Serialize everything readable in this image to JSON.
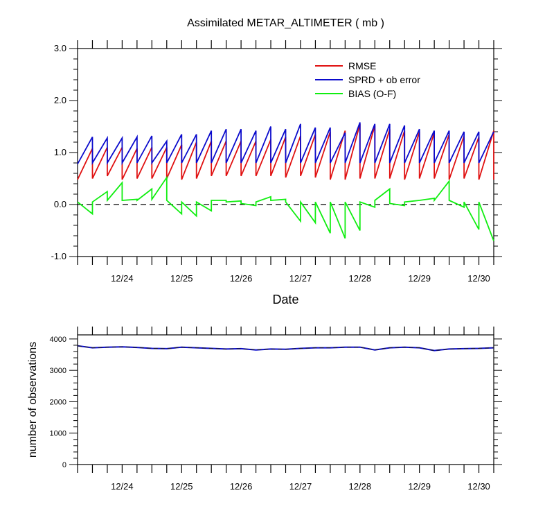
{
  "chart_data": [
    {
      "type": "line",
      "title": "Assimilated METAR_ALTIMETER ( mb )",
      "xlabel": "Date",
      "ylabel": "",
      "xlim": [
        0,
        7.0
      ],
      "ylim": [
        -1.0,
        3.0
      ],
      "yticks": [
        -1.0,
        0.0,
        1.0,
        2.0,
        3.0
      ],
      "ytick_labels": [
        "-1.0",
        "0.0",
        "1.0",
        "2.0",
        "3.0"
      ],
      "xticks": [
        0.75,
        1.75,
        2.75,
        3.75,
        4.75,
        5.75,
        6.75
      ],
      "xtick_labels": [
        "12/24",
        "12/25",
        "12/26",
        "12/27",
        "12/28",
        "12/29",
        "12/30"
      ],
      "legend_position": "top-right",
      "reference_line": {
        "y": 0.0,
        "style": "dashed",
        "color": "#000000"
      },
      "series": [
        {
          "name": "RMSE",
          "color": "#e01010",
          "x": [
            0,
            0.25,
            0.25,
            0.5,
            0.5,
            0.75,
            0.75,
            1.0,
            1.0,
            1.25,
            1.25,
            1.5,
            1.5,
            1.75,
            1.75,
            2.0,
            2.0,
            2.25,
            2.25,
            2.5,
            2.5,
            2.75,
            2.75,
            3.0,
            3.0,
            3.25,
            3.25,
            3.5,
            3.5,
            3.75,
            3.75,
            4.0,
            4.0,
            4.25,
            4.25,
            4.5,
            4.5,
            4.75,
            4.75,
            5.0,
            5.0,
            5.25,
            5.25,
            5.5,
            5.5,
            5.75,
            5.75,
            6.0,
            6.0,
            6.25,
            6.25,
            6.5,
            6.5,
            6.75,
            6.75,
            7.0,
            7.0
          ],
          "values": [
            0.48,
            1.08,
            0.5,
            1.1,
            0.55,
            1.1,
            0.48,
            1.08,
            0.5,
            1.1,
            0.5,
            1.1,
            0.5,
            1.15,
            0.48,
            1.2,
            0.5,
            1.22,
            0.55,
            1.22,
            0.55,
            1.22,
            0.55,
            1.22,
            0.55,
            1.25,
            0.55,
            1.3,
            0.52,
            1.32,
            0.55,
            1.35,
            0.52,
            1.4,
            0.48,
            1.42,
            0.48,
            1.55,
            0.5,
            1.52,
            0.5,
            1.45,
            0.5,
            1.42,
            0.48,
            1.4,
            0.5,
            1.38,
            0.5,
            1.35,
            0.48,
            1.32,
            0.5,
            1.3,
            0.48,
            1.42,
            0.48
          ]
        },
        {
          "name": "SPRD + ob error",
          "color": "#0a0acc",
          "x": [
            0,
            0.25,
            0.25,
            0.5,
            0.5,
            0.75,
            0.75,
            1.0,
            1.0,
            1.25,
            1.25,
            1.5,
            1.5,
            1.75,
            1.75,
            2.0,
            2.0,
            2.25,
            2.25,
            2.5,
            2.5,
            2.75,
            2.75,
            3.0,
            3.0,
            3.25,
            3.25,
            3.5,
            3.5,
            3.75,
            3.75,
            4.0,
            4.0,
            4.25,
            4.25,
            4.5,
            4.5,
            4.75,
            4.75,
            5.0,
            5.0,
            5.25,
            5.25,
            5.5,
            5.5,
            5.75,
            5.75,
            6.0,
            6.0,
            6.25,
            6.25,
            6.5,
            6.5,
            6.75,
            6.75,
            7.0
          ],
          "values": [
            0.78,
            1.3,
            0.8,
            1.28,
            0.8,
            1.28,
            0.8,
            1.3,
            0.8,
            1.32,
            0.8,
            1.22,
            0.8,
            1.35,
            0.8,
            1.35,
            0.8,
            1.42,
            0.8,
            1.45,
            0.8,
            1.45,
            0.8,
            1.42,
            0.8,
            1.5,
            0.8,
            1.45,
            0.8,
            1.55,
            0.8,
            1.48,
            0.8,
            1.48,
            0.8,
            1.38,
            0.8,
            1.58,
            0.8,
            1.55,
            0.8,
            1.55,
            0.8,
            1.52,
            0.8,
            1.45,
            0.8,
            1.42,
            0.8,
            1.42,
            0.8,
            1.4,
            0.8,
            1.4,
            0.8,
            1.4
          ]
        },
        {
          "name": "BIAS (O-F)",
          "color": "#10ee10",
          "x": [
            0,
            0.25,
            0.25,
            0.5,
            0.5,
            0.75,
            0.75,
            1.0,
            1.0,
            1.25,
            1.25,
            1.5,
            1.5,
            1.75,
            1.75,
            2.0,
            2.0,
            2.25,
            2.25,
            2.5,
            2.5,
            2.75,
            2.75,
            3.0,
            3.0,
            3.25,
            3.25,
            3.5,
            3.5,
            3.75,
            3.75,
            4.0,
            4.0,
            4.25,
            4.25,
            4.5,
            4.5,
            4.75,
            4.75,
            5.0,
            5.0,
            5.25,
            5.25,
            5.5,
            5.5,
            5.75,
            5.75,
            6.0,
            6.0,
            6.25,
            6.25,
            6.5,
            6.5,
            6.75,
            6.75,
            7.0
          ],
          "values": [
            0.05,
            -0.18,
            0.05,
            0.25,
            0.08,
            0.42,
            0.08,
            0.1,
            0.08,
            0.3,
            0.1,
            0.52,
            0.08,
            -0.18,
            0.05,
            -0.22,
            0.05,
            -0.12,
            0.08,
            0.08,
            0.05,
            0.07,
            0.02,
            -0.02,
            0.05,
            0.15,
            0.08,
            0.1,
            0.05,
            -0.32,
            0.05,
            -0.35,
            0.05,
            -0.55,
            0.05,
            -0.65,
            0.05,
            -0.5,
            0.05,
            -0.05,
            0.08,
            0.3,
            0.02,
            -0.02,
            0.05,
            0.08,
            0.08,
            0.12,
            0.08,
            0.45,
            0.08,
            -0.05,
            0.05,
            -0.48,
            0.05,
            -0.7
          ]
        }
      ]
    },
    {
      "type": "line",
      "title": "",
      "xlabel": "",
      "ylabel": "number of observations",
      "xlim": [
        0,
        7.0
      ],
      "ylim": [
        0,
        4130
      ],
      "yticks": [
        0,
        1000,
        2000,
        3000,
        4000
      ],
      "ytick_labels": [
        "0",
        "1000",
        "2000",
        "3000",
        "4000"
      ],
      "xticks": [
        0.75,
        1.75,
        2.75,
        3.75,
        4.75,
        5.75,
        6.75
      ],
      "xtick_labels": [
        "12/24",
        "12/25",
        "12/26",
        "12/27",
        "12/28",
        "12/29",
        "12/30"
      ],
      "series": [
        {
          "name": "observations",
          "color": "#0a0acc",
          "x": [
            0,
            0.25,
            0.5,
            0.75,
            1.0,
            1.25,
            1.5,
            1.75,
            2.0,
            2.25,
            2.5,
            2.75,
            3.0,
            3.25,
            3.5,
            3.75,
            4.0,
            4.25,
            4.5,
            4.75,
            5.0,
            5.25,
            5.5,
            5.75,
            6.0,
            6.25,
            6.5,
            6.75,
            7.0
          ],
          "values": [
            3780,
            3720,
            3740,
            3750,
            3730,
            3700,
            3690,
            3740,
            3720,
            3700,
            3680,
            3690,
            3650,
            3680,
            3670,
            3700,
            3720,
            3720,
            3740,
            3740,
            3650,
            3720,
            3740,
            3720,
            3630,
            3680,
            3690,
            3700,
            3720
          ]
        }
      ]
    }
  ]
}
